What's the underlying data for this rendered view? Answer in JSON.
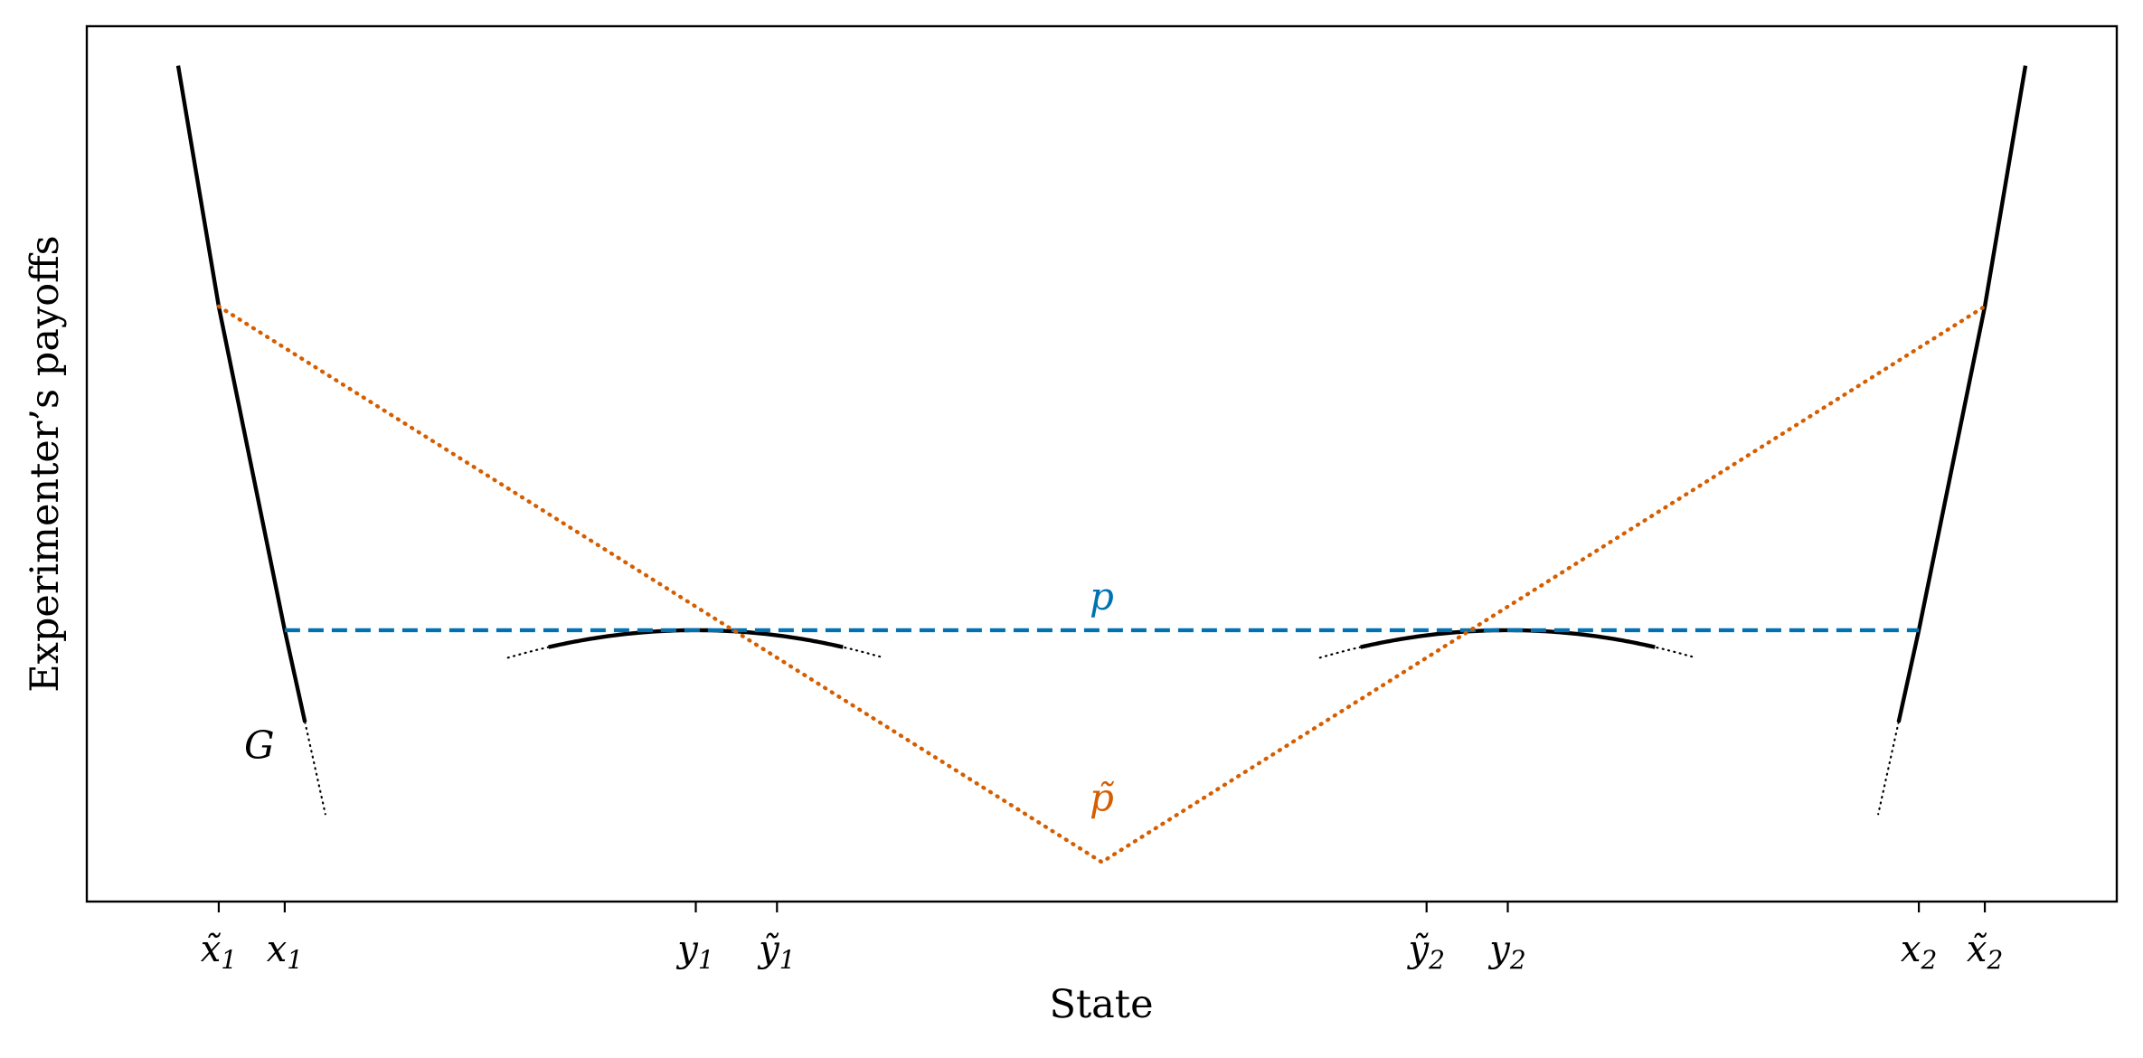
{
  "chart_data": {
    "type": "line",
    "title": "",
    "xlabel": "State",
    "ylabel": "Experimenter’s payoffs",
    "xlim": [
      -10,
      10
    ],
    "ylim": [
      0,
      10
    ],
    "grid": false,
    "x_ticks": [
      {
        "x": -8.7,
        "base": "x",
        "tilde": true,
        "sub": "1"
      },
      {
        "x": -8.05,
        "base": "x",
        "tilde": false,
        "sub": "1"
      },
      {
        "x": -4.0,
        "base": "y",
        "tilde": false,
        "sub": "1"
      },
      {
        "x": -3.2,
        "base": "y",
        "tilde": true,
        "sub": "1"
      },
      {
        "x": 3.2,
        "base": "y",
        "tilde": true,
        "sub": "2"
      },
      {
        "x": 4.0,
        "base": "y",
        "tilde": false,
        "sub": "2"
      },
      {
        "x": 8.05,
        "base": "x",
        "tilde": false,
        "sub": "2"
      },
      {
        "x": 8.7,
        "base": "x",
        "tilde": true,
        "sub": "2"
      }
    ],
    "annotations": [
      {
        "text": "G",
        "x": -8.3,
        "y": 1.75,
        "color": "#000000"
      },
      {
        "text": "p",
        "x": 0.0,
        "y": 3.45,
        "color": "#0072b2"
      },
      {
        "text": "p̃",
        "x": 0.0,
        "y": 1.15,
        "color": "#d55e00"
      }
    ],
    "series": [
      {
        "id": "G-left",
        "color": "#000000",
        "style": "solid",
        "points": [
          [
            -9.1,
            9.55
          ],
          [
            -8.7,
            6.8
          ],
          [
            -8.05,
            3.1
          ],
          [
            -7.85,
            2.05
          ]
        ]
      },
      {
        "id": "G-left-ext",
        "color": "#000000",
        "style": "dotted-thin",
        "points": [
          [
            -7.85,
            2.05
          ],
          [
            -7.65,
            1.0
          ]
        ]
      },
      {
        "id": "G-right",
        "color": "#000000",
        "style": "solid",
        "points": [
          [
            9.1,
            9.55
          ],
          [
            8.7,
            6.8
          ],
          [
            8.05,
            3.1
          ],
          [
            7.85,
            2.05
          ]
        ]
      },
      {
        "id": "G-right-ext",
        "color": "#000000",
        "style": "dotted-thin",
        "points": [
          [
            7.85,
            2.05
          ],
          [
            7.65,
            1.0
          ]
        ]
      },
      {
        "id": "G-hump-1",
        "color": "#000000",
        "style": "solid",
        "parabola": {
          "vertex_x": -4.0,
          "vertex_y": 3.1,
          "k": 0.0918,
          "from": -5.45,
          "to": -2.55
        }
      },
      {
        "id": "G-hump-1-ext",
        "color": "#000000",
        "style": "dotted-thin",
        "parabola": {
          "vertex_x": -4.0,
          "vertex_y": 3.1,
          "k": 0.0918,
          "from": -5.85,
          "to": -2.15
        }
      },
      {
        "id": "G-hump-2",
        "color": "#000000",
        "style": "solid",
        "parabola": {
          "vertex_x": 4.0,
          "vertex_y": 3.1,
          "k": 0.0918,
          "from": 2.55,
          "to": 5.45
        }
      },
      {
        "id": "G-hump-2-ext",
        "color": "#000000",
        "style": "dotted-thin",
        "parabola": {
          "vertex_x": 4.0,
          "vertex_y": 3.1,
          "k": 0.0918,
          "from": 2.15,
          "to": 5.85
        }
      },
      {
        "id": "p",
        "name": "p",
        "color": "#0072b2",
        "style": "dashed",
        "points": [
          [
            -8.05,
            3.1
          ],
          [
            8.05,
            3.1
          ]
        ]
      },
      {
        "id": "p-tilde",
        "name": "p̃",
        "color": "#d55e00",
        "style": "dotted",
        "points": [
          [
            -8.7,
            6.8
          ],
          [
            0.0,
            0.45
          ],
          [
            8.7,
            6.8
          ]
        ]
      }
    ]
  }
}
